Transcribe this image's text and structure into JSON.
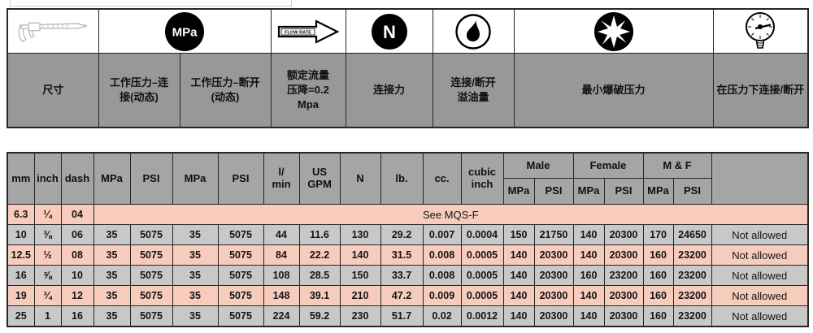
{
  "spec_header": {
    "icons": {
      "mpa_badge": "MPa",
      "flow_rate": "FLOW RATE",
      "newton_badge": "N"
    },
    "labels": {
      "size": "尺寸",
      "working_pressure_connected": "工作压力–连\n接(动态)",
      "working_pressure_disconnected": "工作压力–断开\n(动态)",
      "rated_flow": "额定流量\n压降=0.2\nMpa",
      "connection_force": "连接力",
      "spillage": "连接/断开\n溢油量",
      "min_burst_pressure": "最小爆破压力",
      "connect_under_pressure": "在压力下连接/断开"
    }
  },
  "table": {
    "group_headers": {
      "male": "Male",
      "female": "Female",
      "mf": "M & F"
    },
    "headers": {
      "mm": "mm",
      "inch": "inch",
      "dash": "dash",
      "mpa_conn": "MPa",
      "psi_conn": "PSI",
      "mpa_disc": "MPa",
      "psi_disc": "PSI",
      "l_min": "l/\nmin",
      "us_gpm": "US\nGPM",
      "n": "N",
      "lb": "lb.",
      "cc": "cc.",
      "cubic_inch": "cubic\ninch",
      "male_mpa": "MPa",
      "male_psi": "PSI",
      "female_mpa": "MPa",
      "female_psi": "PSI",
      "mf_mpa": "MPa",
      "mf_psi": "PSI",
      "last": ""
    },
    "rows": [
      {
        "cells": [
          "6.3",
          "¼",
          "04"
        ],
        "merged": "See MQS-F"
      },
      {
        "cells": [
          "10",
          "⅜",
          "06",
          "35",
          "5075",
          "35",
          "5075",
          "44",
          "11.6",
          "130",
          "29.2",
          "0.007",
          "0.0004",
          "150",
          "21750",
          "140",
          "20300",
          "170",
          "24650",
          "Not allowed"
        ]
      },
      {
        "cells": [
          "12.5",
          "½",
          "08",
          "35",
          "5075",
          "35",
          "5075",
          "84",
          "22.2",
          "140",
          "31.5",
          "0.008",
          "0.0005",
          "140",
          "20300",
          "140",
          "20300",
          "160",
          "23200",
          "Not allowed"
        ]
      },
      {
        "cells": [
          "16",
          "⅝",
          "10",
          "35",
          "5075",
          "35",
          "5075",
          "108",
          "28.5",
          "150",
          "33.7",
          "0.008",
          "0.0005",
          "140",
          "20300",
          "160",
          "23200",
          "160",
          "23200",
          "Not allowed"
        ]
      },
      {
        "cells": [
          "19",
          "¾",
          "12",
          "35",
          "5075",
          "35",
          "5075",
          "148",
          "39.1",
          "210",
          "47.2",
          "0.009",
          "0.0005",
          "140",
          "20300",
          "140",
          "20300",
          "160",
          "23200",
          "Not allowed"
        ]
      },
      {
        "cells": [
          "25",
          "1",
          "16",
          "35",
          "5075",
          "35",
          "5075",
          "224",
          "59.2",
          "230",
          "51.7",
          "0.02",
          "0.0012",
          "140",
          "20300",
          "140",
          "20300",
          "160",
          "23200",
          "Not allowed"
        ]
      }
    ]
  },
  "colors": {
    "row_pink": "#f8ccbd",
    "row_gray": "#c8c8c8",
    "header_gray": "#a5a5a5",
    "label_gray": "#989898",
    "border": "#262626"
  }
}
